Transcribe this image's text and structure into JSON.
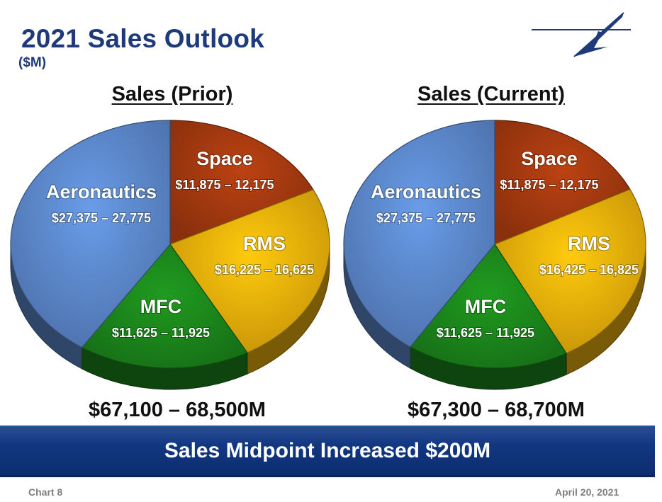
{
  "slide": {
    "title": "2021 Sales Outlook",
    "subtitle": "($M)",
    "banner": "Sales Midpoint Increased $200M",
    "footer_left": "Chart 8",
    "footer_right": "April 20, 2021"
  },
  "colors": {
    "title": "#1f3a7a",
    "aeronautics": "#5e8bd0",
    "space": "#a83b10",
    "rms": "#f2b40b",
    "mfc": "#1c8a1c",
    "banner": "#123781"
  },
  "chart_data": [
    {
      "type": "pie",
      "title": "Sales (Prior)",
      "total_label": "$67,100 – 68,500M",
      "slices": [
        {
          "name": "Aeronautics",
          "range": "$27,375 – 27,775",
          "low": 27375,
          "high": 27775,
          "value": 27575
        },
        {
          "name": "Space",
          "range": "$11,875 – 12,175",
          "low": 11875,
          "high": 12175,
          "value": 12025
        },
        {
          "name": "RMS",
          "range": "$16,225 – 16,625",
          "low": 16225,
          "high": 16625,
          "value": 16425
        },
        {
          "name": "MFC",
          "range": "$11,625 – 11,925",
          "low": 11625,
          "high": 11925,
          "value": 11775
        }
      ]
    },
    {
      "type": "pie",
      "title": "Sales (Current)",
      "total_label": "$67,300 – 68,700M",
      "slices": [
        {
          "name": "Aeronautics",
          "range": "$27,375 – 27,775",
          "low": 27375,
          "high": 27775,
          "value": 27575
        },
        {
          "name": "Space",
          "range": "$11,875 – 12,175",
          "low": 11875,
          "high": 12175,
          "value": 12025
        },
        {
          "name": "RMS",
          "range": "$16,425 – 16,825",
          "low": 16425,
          "high": 16825,
          "value": 16625
        },
        {
          "name": "MFC",
          "range": "$11,625 – 11,925",
          "low": 11625,
          "high": 11925,
          "value": 11775
        }
      ]
    }
  ]
}
